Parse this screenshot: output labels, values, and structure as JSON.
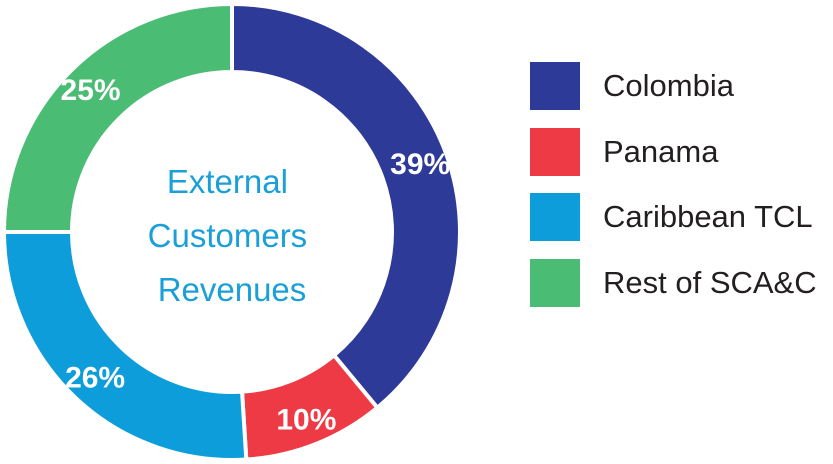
{
  "chart_data": {
    "type": "pie",
    "title": "External Customers Revenues",
    "center_label_lines": [
      "External",
      "Customers",
      "Revenues"
    ],
    "slices": [
      {
        "name": "Colombia",
        "value": 39,
        "label": "39%",
        "color": "#2e3a97"
      },
      {
        "name": "Panama",
        "value": 10,
        "label": "10%",
        "color": "#ed3a45"
      },
      {
        "name": "Caribbean TCL",
        "value": 26,
        "label": "26%",
        "color": "#0e9ddb"
      },
      {
        "name": "Rest of SCA&C",
        "value": 25,
        "label": "25%",
        "color": "#4bbc73"
      }
    ],
    "legend_position": "right",
    "center_text_color": "#1a9fd9"
  }
}
